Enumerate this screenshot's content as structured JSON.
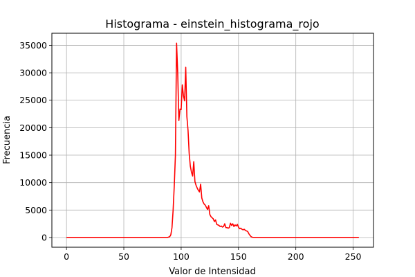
{
  "chart_data": {
    "type": "line",
    "title": "Histograma - einstein_histograma_rojo",
    "xlabel": "Valor de Intensidad",
    "ylabel": "Frecuencia",
    "xlim": [
      -12.75,
      267.75
    ],
    "ylim": [
      -1770,
      37200
    ],
    "xticks": [
      0,
      50,
      100,
      150,
      200,
      250
    ],
    "xtick_labels": [
      "0",
      "50",
      "100",
      "150",
      "200",
      "250"
    ],
    "yticks": [
      0,
      5000,
      10000,
      15000,
      20000,
      25000,
      30000,
      35000
    ],
    "ytick_labels": [
      "0",
      "5000",
      "10000",
      "15000",
      "20000",
      "25000",
      "30000",
      "35000"
    ],
    "grid": true,
    "line_color": "#ff0000",
    "series": [
      {
        "x": [
          0,
          10,
          20,
          30,
          40,
          50,
          60,
          70,
          80,
          88,
          90,
          91,
          92,
          93,
          94,
          95,
          96,
          97,
          98,
          99,
          100,
          101,
          102,
          103,
          104,
          105,
          106,
          107,
          108,
          109,
          110,
          111,
          112,
          113,
          114,
          115,
          116,
          117,
          118,
          119,
          120,
          121,
          122,
          123,
          124,
          125,
          126,
          127,
          128,
          129,
          130,
          131,
          132,
          133,
          134,
          135,
          136,
          137,
          138,
          139,
          140,
          141,
          142,
          143,
          144,
          145,
          146,
          147,
          148,
          149,
          150,
          151,
          152,
          153,
          154,
          155,
          156,
          157,
          158,
          159,
          160,
          161,
          162,
          163,
          165,
          170,
          180,
          190,
          200,
          210,
          220,
          230,
          240,
          250,
          255
        ],
        "y": [
          0,
          0,
          0,
          0,
          0,
          0,
          0,
          0,
          0,
          0,
          150,
          500,
          1800,
          5000,
          9500,
          15000,
          35400,
          30000,
          21300,
          23400,
          23300,
          27800,
          25800,
          24900,
          31000,
          22000,
          19500,
          15300,
          13000,
          11900,
          11200,
          13800,
          10200,
          9500,
          9000,
          8600,
          8300,
          9700,
          7200,
          6500,
          6100,
          5900,
          5500,
          5100,
          5800,
          4200,
          3800,
          3600,
          3400,
          2900,
          3200,
          2400,
          2300,
          2200,
          2000,
          2100,
          1900,
          2000,
          2500,
          1800,
          1800,
          1700,
          1800,
          2600,
          2200,
          2500,
          2000,
          2300,
          2100,
          2400,
          1900,
          1600,
          1700,
          1500,
          1400,
          1500,
          1300,
          1200,
          1100,
          700,
          400,
          150,
          50,
          0,
          0,
          0,
          0,
          0,
          0,
          0,
          0,
          0,
          0,
          0,
          0
        ]
      }
    ]
  }
}
